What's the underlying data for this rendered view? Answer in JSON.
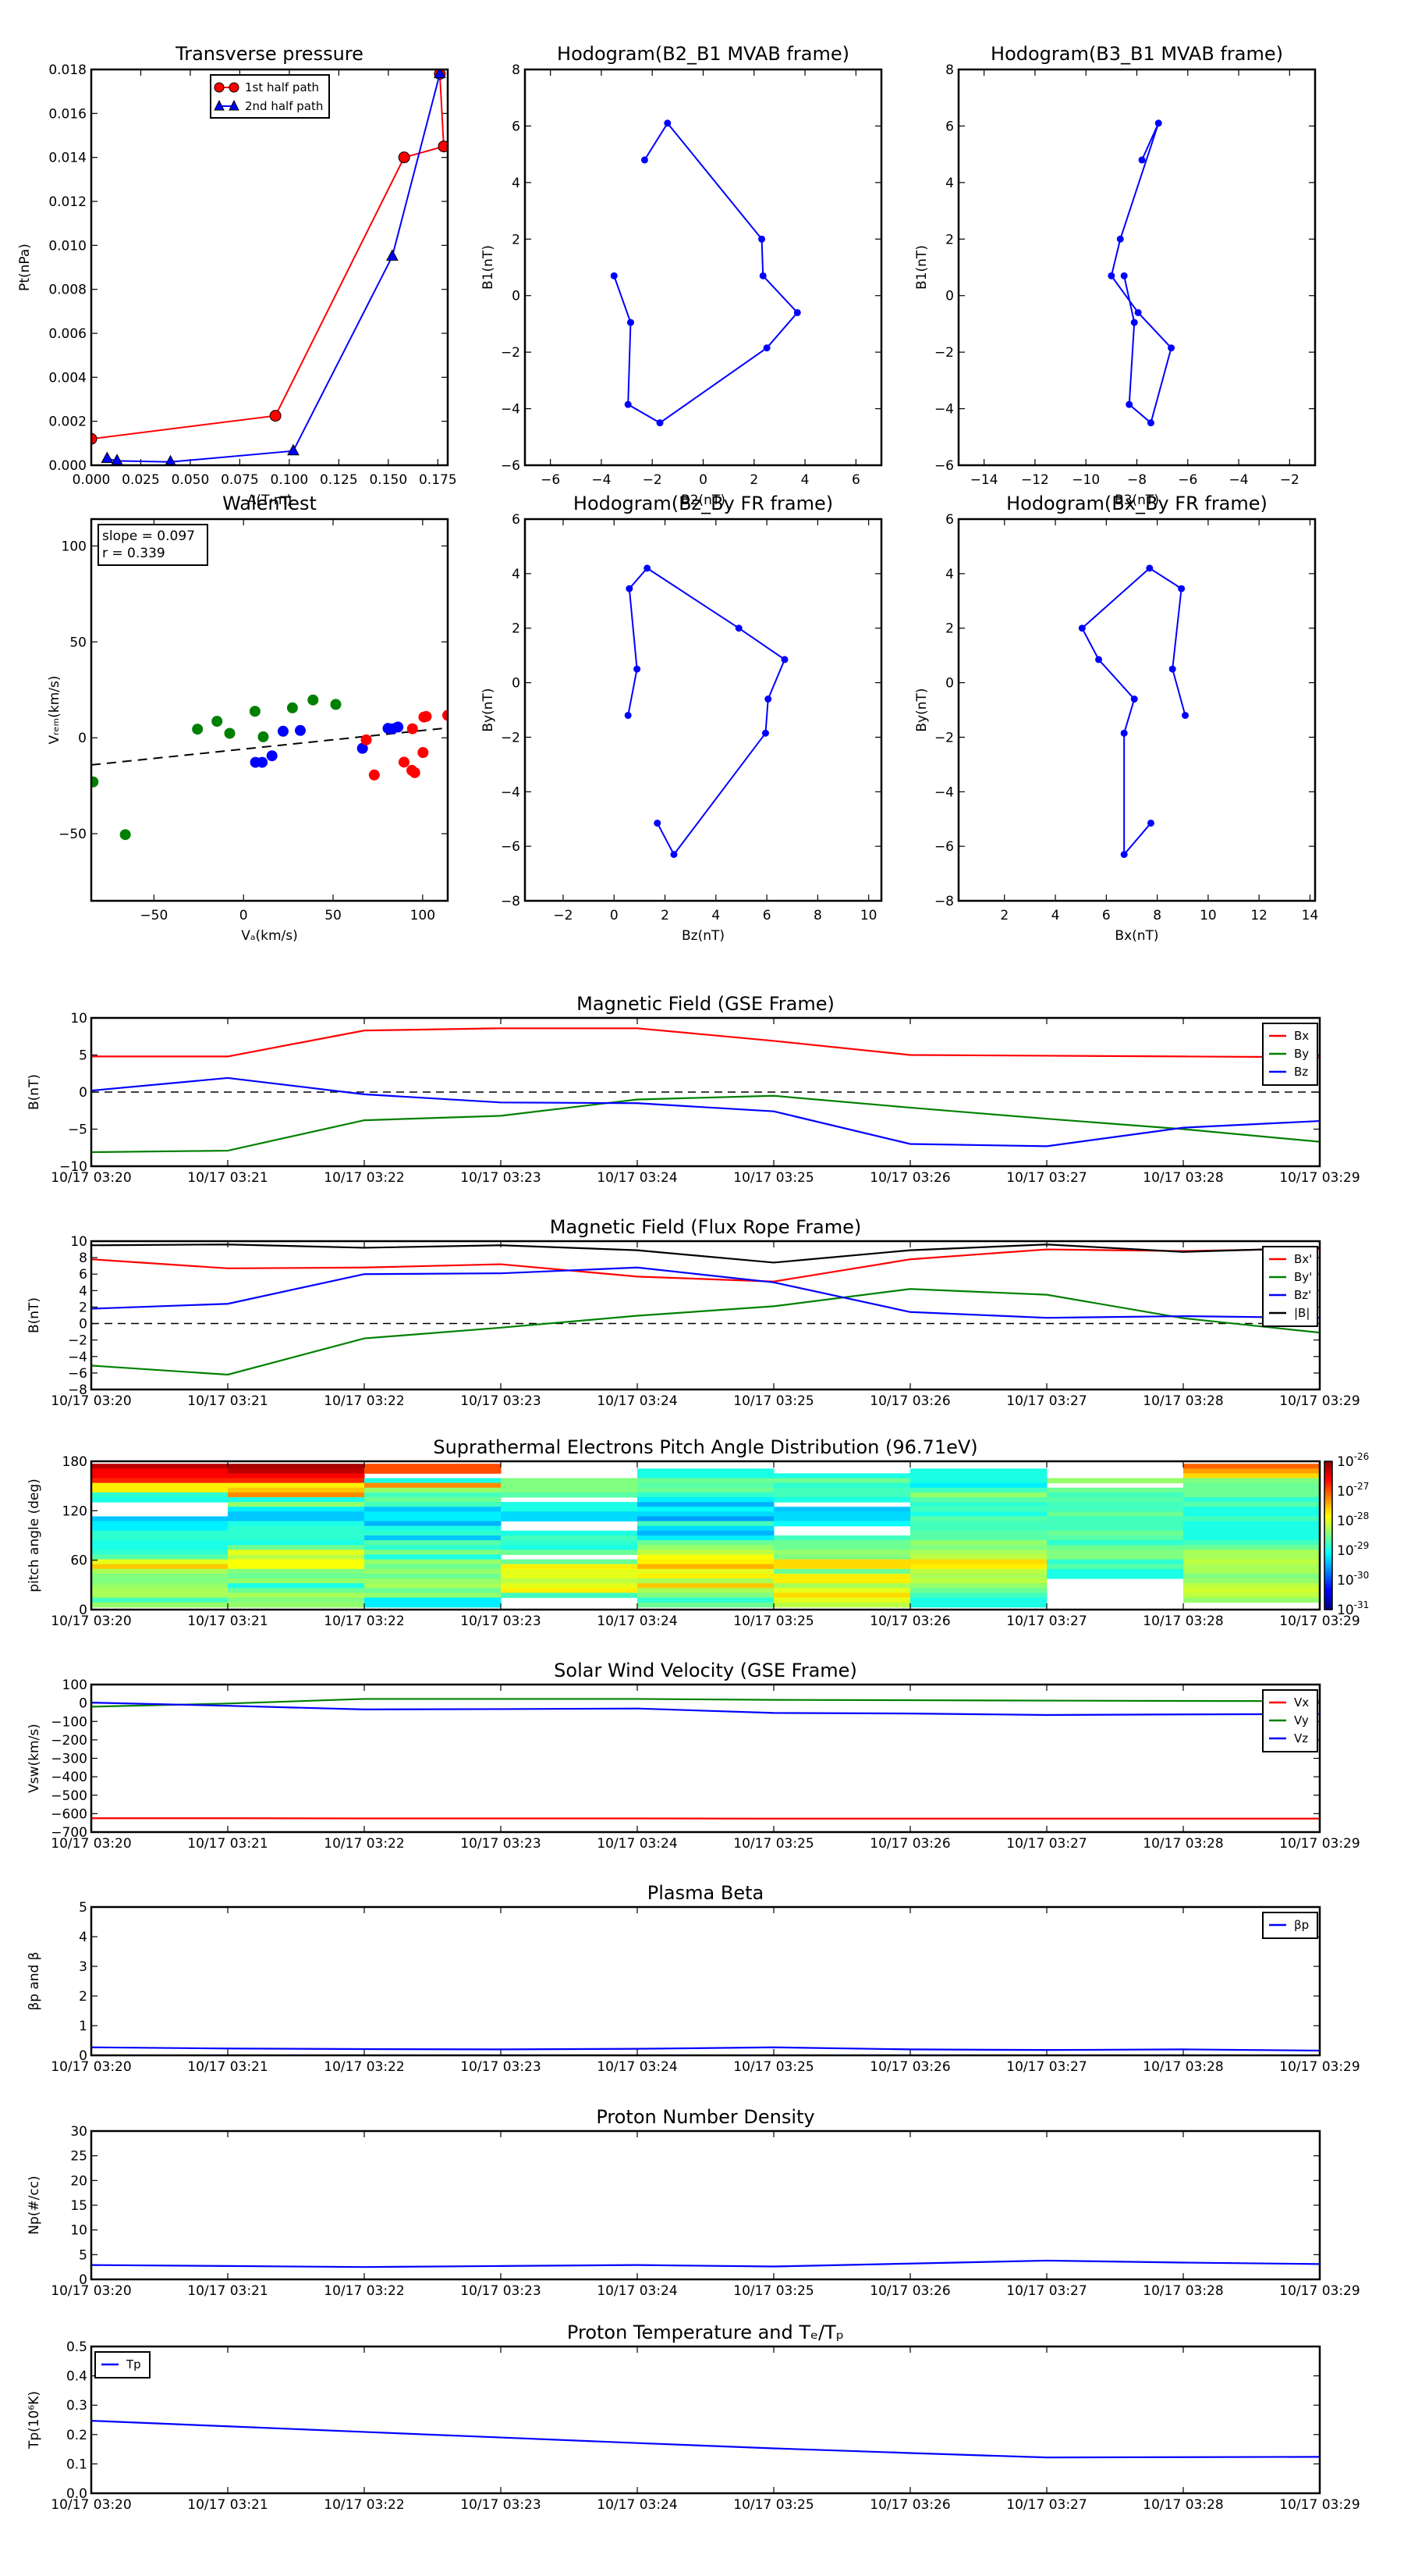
{
  "figure": {
    "time_ticks": [
      "10/17 03:20",
      "10/17 03:21",
      "10/17 03:22",
      "10/17 03:23",
      "10/17 03:24",
      "10/17 03:25",
      "10/17 03:26",
      "10/17 03:27",
      "10/17 03:28",
      "10/17 03:29"
    ]
  },
  "chart_data": [
    {
      "id": "transverse",
      "type": "line",
      "title": "Transverse pressure",
      "xlabel": "A(T·m)",
      "ylabel": "Pt(nPa)",
      "xlim": [
        0,
        0.18
      ],
      "ylim": [
        0,
        0.018
      ],
      "xticks": [
        0,
        0.025,
        0.05,
        0.075,
        0.1,
        0.125,
        0.15,
        0.175
      ],
      "xticklabels": [
        "0.000",
        "0.025",
        "0.050",
        "0.075",
        "0.100",
        "0.125",
        "0.150",
        "0.175"
      ],
      "yticks": [
        0,
        0.002,
        0.004,
        0.006,
        0.008,
        0.01,
        0.012,
        0.014,
        0.016,
        0.018
      ],
      "yticklabels": [
        "0.000",
        "0.002",
        "0.004",
        "0.006",
        "0.008",
        "0.010",
        "0.012",
        "0.014",
        "0.016",
        "0.018"
      ],
      "legend": "top-center",
      "series": [
        {
          "name": "1st half path",
          "color": "#ff0000",
          "marker": "circle",
          "x": [
            0.0,
            0.093,
            0.158,
            0.178,
            0.176
          ],
          "y": [
            0.0012,
            0.00225,
            0.014,
            0.0145,
            0.0178
          ]
        },
        {
          "name": "2nd half path",
          "color": "#0000ff",
          "marker": "triangle",
          "x": [
            0.176,
            0.152,
            0.102,
            0.04,
            0.013,
            0.008
          ],
          "y": [
            0.0178,
            0.0095,
            0.00065,
            0.00015,
            0.0002,
            0.0003
          ]
        }
      ]
    },
    {
      "id": "hodo-b2b1",
      "type": "line",
      "title": "Hodogram(B2_B1 MVAB frame)",
      "xlabel": "B2(nT)",
      "ylabel": "B1(nT)",
      "xlim": [
        -7,
        7
      ],
      "ylim": [
        -6,
        8
      ],
      "xticks": [
        -6,
        -4,
        -2,
        0,
        2,
        4,
        6
      ],
      "yticks": [
        -6,
        -4,
        -2,
        0,
        2,
        4,
        6,
        8
      ],
      "series": [
        {
          "name": "B2_B1",
          "color": "#0000ff",
          "x": [
            -2.3,
            -1.4,
            2.3,
            2.35,
            3.7,
            2.5,
            -1.7,
            -2.95,
            -2.85,
            -3.5
          ],
          "y": [
            4.8,
            6.1,
            2.0,
            0.7,
            -0.6,
            -1.85,
            -4.5,
            -3.85,
            -0.95,
            0.7
          ]
        }
      ]
    },
    {
      "id": "hodo-b3b1",
      "type": "line",
      "title": "Hodogram(B3_B1 MVAB frame)",
      "xlabel": "B3(nT)",
      "ylabel": "B1(nT)",
      "xlim": [
        -15,
        -1
      ],
      "ylim": [
        -6,
        8
      ],
      "xticks": [
        -14,
        -12,
        -10,
        -8,
        -6,
        -4,
        -2
      ],
      "yticks": [
        -6,
        -4,
        -2,
        0,
        2,
        4,
        6,
        8
      ],
      "series": [
        {
          "name": "B3_B1",
          "color": "#0000ff",
          "x": [
            -7.8,
            -7.15,
            -8.65,
            -9.0,
            -7.95,
            -6.65,
            -7.45,
            -8.3,
            -8.1,
            -8.5
          ],
          "y": [
            4.8,
            6.1,
            2.0,
            0.7,
            -0.6,
            -1.85,
            -4.5,
            -3.85,
            -0.95,
            0.7
          ]
        }
      ]
    },
    {
      "id": "walen",
      "type": "scatter",
      "title": "WalenTest",
      "xlabel": "V_A(km/s)",
      "ylabel": "V_remaining(km/s)",
      "xlim": [
        -85,
        114
      ],
      "ylim": [
        -85,
        114
      ],
      "xticks": [
        -50,
        0,
        50,
        100
      ],
      "yticks": [
        -50,
        0,
        50,
        100
      ],
      "annotation": [
        "slope = 0.097",
        "r = 0.339"
      ],
      "fit": {
        "slope": 0.097,
        "intercept": -5.9,
        "style": "dashed"
      },
      "series": [
        {
          "name": "green",
          "color": "#008000",
          "x": [
            -84,
            -66,
            -25.7,
            -14.8,
            -7.7,
            6.4,
            11,
            27.3,
            38.8,
            51.5
          ],
          "y": [
            -23,
            -50.5,
            4.5,
            8.6,
            2.3,
            13.8,
            0.5,
            15.6,
            19.7,
            17.4
          ]
        },
        {
          "name": "blue",
          "color": "#0000ff",
          "x": [
            6.7,
            10.4,
            15.9,
            22.1,
            31.7,
            66.4,
            80.7,
            83.2,
            86.2
          ],
          "y": [
            -12.8,
            -12.8,
            -9.4,
            3.4,
            3.8,
            -5.5,
            4.9,
            4.7,
            5.6
          ]
        },
        {
          "name": "red",
          "color": "#ff0000",
          "x": [
            68.5,
            73,
            89.6,
            94.3,
            94,
            95.6,
            100.2,
            100.7,
            102,
            114
          ],
          "y": [
            -1.1,
            -19.4,
            -12.7,
            4.7,
            -17,
            -18.2,
            -7.7,
            10.8,
            11.1,
            11.7
          ]
        }
      ]
    },
    {
      "id": "hodo-bzby",
      "type": "line",
      "title": "Hodogram(Bz_By FR frame)",
      "xlabel": "Bz(nT)",
      "ylabel": "By(nT)",
      "xlim": [
        -3.5,
        10.5
      ],
      "ylim": [
        -8,
        6
      ],
      "xticks": [
        -2,
        0,
        2,
        4,
        6,
        8,
        10
      ],
      "yticks": [
        -8,
        -6,
        -4,
        -2,
        0,
        2,
        4,
        6
      ],
      "series": [
        {
          "name": "Bz_By",
          "color": "#0000ff",
          "x": [
            1.7,
            2.35,
            5.95,
            6.05,
            6.7,
            4.9,
            1.3,
            0.6,
            0.9,
            0.55
          ],
          "y": [
            -5.15,
            -6.3,
            -1.85,
            -0.6,
            0.85,
            2.0,
            4.2,
            3.45,
            0.5,
            -1.2
          ]
        }
      ]
    },
    {
      "id": "hodo-bxby",
      "type": "line",
      "title": "Hodogram(Bx_By FR frame)",
      "xlabel": "Bx(nT)",
      "ylabel": "By(nT)",
      "xlim": [
        0.2,
        14.2
      ],
      "ylim": [
        -8,
        6
      ],
      "xticks": [
        2,
        4,
        6,
        8,
        10,
        12,
        14
      ],
      "yticks": [
        -8,
        -6,
        -4,
        -2,
        0,
        2,
        4,
        6
      ],
      "series": [
        {
          "name": "Bx_By",
          "color": "#0000ff",
          "x": [
            7.75,
            6.7,
            6.7,
            7.1,
            5.7,
            5.05,
            7.7,
            8.95,
            8.6,
            9.1
          ],
          "y": [
            -5.15,
            -6.3,
            -1.85,
            -0.6,
            0.85,
            2.0,
            4.2,
            3.45,
            0.5,
            -1.2
          ]
        }
      ]
    },
    {
      "id": "b-gse",
      "type": "line",
      "title": "Magnetic Field (GSE Frame)",
      "ylabel": "B(nT)",
      "ylim": [
        -10,
        10
      ],
      "yticks": [
        -10,
        -5,
        0,
        5,
        10
      ],
      "zero_line": true,
      "legend": "top-right",
      "series": [
        {
          "name": "Bx",
          "color": "#ff0000",
          "values": [
            4.8,
            4.8,
            8.3,
            8.6,
            8.6,
            6.9,
            5.0,
            4.9,
            4.8,
            4.7
          ]
        },
        {
          "name": "By",
          "color": "#008000",
          "values": [
            -8.1,
            -7.9,
            -3.8,
            -3.2,
            -1.0,
            -0.5,
            -2.1,
            -3.6,
            -5.0,
            -6.7
          ]
        },
        {
          "name": "Bz",
          "color": "#0000ff",
          "values": [
            0.2,
            1.9,
            -0.3,
            -1.4,
            -1.5,
            -2.6,
            -7.0,
            -7.3,
            -4.8,
            -3.9
          ]
        }
      ]
    },
    {
      "id": "b-fr",
      "type": "line",
      "title": "Magnetic Field (Flux Rope Frame)",
      "ylabel": "B(nT)",
      "ylim": [
        -8,
        10
      ],
      "yticks": [
        -8,
        -6,
        -4,
        -2,
        0,
        2,
        4,
        6,
        8,
        10
      ],
      "zero_line": true,
      "legend": "top-right",
      "series": [
        {
          "name": "Bx'",
          "color": "#ff0000",
          "values": [
            7.8,
            6.7,
            6.8,
            7.2,
            5.7,
            5.1,
            7.8,
            9.0,
            8.8,
            9.1
          ]
        },
        {
          "name": "By'",
          "color": "#008000",
          "values": [
            -5.1,
            -6.2,
            -1.8,
            -0.5,
            0.95,
            2.1,
            4.2,
            3.5,
            0.65,
            -1.1
          ]
        },
        {
          "name": "Bz'",
          "color": "#0000ff",
          "values": [
            1.8,
            2.4,
            6.0,
            6.1,
            6.8,
            5.0,
            1.4,
            0.7,
            0.9,
            0.7
          ]
        },
        {
          "name": "|B|",
          "color": "#000000",
          "values": [
            9.5,
            9.6,
            9.2,
            9.5,
            8.9,
            7.4,
            8.9,
            9.6,
            8.7,
            9.2
          ]
        }
      ]
    },
    {
      "id": "pad",
      "type": "heatmap",
      "title": "Suprathermal Electrons Pitch Angle Distribution (96.71eV)",
      "ylabel": "pitch angle (deg)",
      "ylim": [
        0,
        180
      ],
      "yticks": [
        0,
        60,
        120,
        180
      ],
      "colorbar": {
        "scale": "log",
        "range": [
          -31,
          -26
        ],
        "ticklabels": [
          "10-31",
          "10-30",
          "10-29",
          "10-28",
          "10-27",
          "10-26"
        ]
      },
      "pitch_bins_top_to_bottom": 30,
      "log10_values_by_time": [
        [
          -26.3,
          -26.6,
          -26.6,
          -26.8,
          -27.8,
          -27.8,
          -28.9,
          -29.0,
          null,
          null,
          null,
          -29.4,
          -29.2,
          -29.2,
          -28.9,
          -28.9,
          -29.0,
          -29.0,
          -28.9,
          -28.7,
          -28.0,
          -27.6,
          -28.3,
          -28.5,
          -28.5,
          -28.4,
          -28.3,
          -28.3,
          -28.8,
          -28.4
        ],
        [
          -26.2,
          -26.3,
          -26.6,
          -26.8,
          -27.8,
          -27.6,
          -27.3,
          -29.0,
          -28.4,
          -29.2,
          -29.4,
          -29.4,
          -29.0,
          -28.9,
          -28.9,
          -28.9,
          -29.0,
          -28.6,
          -28.0,
          -28.2,
          -27.9,
          -27.9,
          -28.5,
          -28.6,
          -28.4,
          -29.0,
          -28.6,
          -28.3,
          -28.5,
          -28.4
        ],
        [
          -27.0,
          -27.0,
          null,
          -29.0,
          -27.3,
          -28.4,
          -28.8,
          -28.6,
          -28.8,
          -29.4,
          -29.2,
          -29.2,
          -29.5,
          -29.0,
          -28.9,
          -29.4,
          -28.7,
          -28.9,
          -28.5,
          -29.0,
          -28.4,
          -28.6,
          -28.4,
          -28.6,
          -28.4,
          -28.3,
          -28.6,
          -28.4,
          -29.2,
          -29.2
        ],
        [
          null,
          null,
          null,
          -28.5,
          -28.5,
          -28.5,
          -28.7,
          null,
          -29.0,
          -29.0,
          -29.3,
          -29.3,
          null,
          null,
          -29.0,
          -28.8,
          -28.9,
          -29.0,
          -28.6,
          null,
          -28.6,
          -27.8,
          -28.0,
          -28.0,
          -28.2,
          -28.0,
          -27.8,
          -28.8,
          null,
          null
        ],
        [
          null,
          -29.0,
          -29.0,
          -28.6,
          -28.7,
          -28.6,
          -28.9,
          -29.2,
          -29.5,
          -29.1,
          -29.3,
          -29.6,
          -28.8,
          -29.3,
          -29.5,
          -29.2,
          -28.6,
          -28.4,
          -28.2,
          -27.9,
          -27.8,
          -27.5,
          -28.0,
          -27.8,
          -28.3,
          -27.6,
          -28.3,
          -28.5,
          -28.9,
          -28.6
        ],
        [
          null,
          null,
          -29.0,
          -28.6,
          -28.9,
          -28.8,
          -28.8,
          -29.0,
          null,
          -29.4,
          -29.3,
          -29.3,
          -29.1,
          null,
          null,
          -28.8,
          -28.6,
          -28.6,
          -28.4,
          -28.5,
          -27.7,
          -27.7,
          -28.6,
          -27.8,
          -27.8,
          -28.3,
          -28.0,
          -27.7,
          -28.0,
          -28.2
        ],
        [
          null,
          -29.0,
          -29.0,
          -29.0,
          -29.2,
          -28.8,
          -28.4,
          -28.7,
          -28.9,
          -28.8,
          -29.0,
          -28.7,
          -28.8,
          -28.8,
          -28.7,
          -28.7,
          -28.4,
          -28.5,
          -28.3,
          -28.2,
          -27.7,
          -27.8,
          -28.2,
          -28.3,
          -28.2,
          -28.4,
          -28.6,
          -28.8,
          -29.0,
          -29.0
        ],
        [
          null,
          null,
          null,
          -28.4,
          null,
          -28.6,
          -28.8,
          -28.7,
          -28.8,
          -28.8,
          -28.6,
          -28.8,
          -28.8,
          -28.8,
          -28.6,
          -28.7,
          -28.9,
          -28.6,
          -28.5,
          -28.5,
          -28.9,
          -28.7,
          -29.0,
          -29.0,
          null,
          null,
          null,
          null,
          null,
          null
        ],
        [
          -27.1,
          -27.4,
          -27.7,
          -28.5,
          -28.6,
          -28.6,
          -28.6,
          -28.9,
          -28.7,
          -29.0,
          -29.0,
          -28.8,
          -29.0,
          -29.0,
          -29.0,
          -29.0,
          -28.8,
          -28.6,
          -28.3,
          -28.3,
          -28.2,
          -28.3,
          -28.3,
          -28.5,
          -28.4,
          -28.2,
          -28.1,
          -28.2,
          -28.4,
          null
        ]
      ]
    },
    {
      "id": "vsw",
      "type": "line",
      "title": "Solar Wind Velocity (GSE Frame)",
      "ylabel": "Vsw(km/s)",
      "ylim": [
        -700,
        100
      ],
      "yticks": [
        -700,
        -600,
        -500,
        -400,
        -300,
        -200,
        -100,
        0,
        100
      ],
      "legend": "top-right",
      "series": [
        {
          "name": "Vx",
          "color": "#ff0000",
          "values": [
            -625,
            -625,
            -626,
            -626,
            -626,
            -627,
            -627,
            -627,
            -627,
            -627
          ]
        },
        {
          "name": "Vy",
          "color": "#008000",
          "values": [
            -20,
            -3,
            22,
            22,
            22,
            17,
            15,
            13,
            11,
            10
          ]
        },
        {
          "name": "Vz",
          "color": "#0000ff",
          "values": [
            2,
            -15,
            -35,
            -33,
            -30,
            -54,
            -57,
            -65,
            -62,
            -60
          ]
        }
      ]
    },
    {
      "id": "beta",
      "type": "line",
      "title": "Plasma Beta",
      "ylabel": "βp and β",
      "ylim": [
        0,
        5
      ],
      "yticks": [
        0,
        1,
        2,
        3,
        4,
        5
      ],
      "legend": "top-right",
      "series": [
        {
          "name": "βp",
          "color": "#0000ff",
          "values": [
            0.27,
            0.23,
            0.21,
            0.2,
            0.22,
            0.27,
            0.2,
            0.18,
            0.2,
            0.16
          ]
        }
      ]
    },
    {
      "id": "np",
      "type": "line",
      "title": "Proton Number Density",
      "ylabel": "Np(#/cc)",
      "ylim": [
        0,
        30
      ],
      "yticks": [
        0,
        5,
        10,
        15,
        20,
        25,
        30
      ],
      "series": [
        {
          "name": "Np",
          "color": "#0000ff",
          "values": [
            2.9,
            2.7,
            2.5,
            2.7,
            2.9,
            2.6,
            3.2,
            3.8,
            3.4,
            3.1
          ]
        }
      ]
    },
    {
      "id": "tp",
      "type": "line",
      "title": "Proton Temperature and Te/Tp",
      "ylabel": "Tp(10^6K)",
      "ylim": [
        0,
        0.5
      ],
      "yticks": [
        0,
        0.1,
        0.2,
        0.3,
        0.4,
        0.5
      ],
      "yticklabels": [
        "0.0",
        "0.1",
        "0.2",
        "0.3",
        "0.4",
        "0.5"
      ],
      "legend": "top-left",
      "series": [
        {
          "name": "Tp",
          "color": "#0000ff",
          "values": [
            0.247,
            0.228,
            0.209,
            0.19,
            0.171,
            0.153,
            0.137,
            0.122,
            0.123,
            0.124
          ]
        }
      ]
    }
  ]
}
